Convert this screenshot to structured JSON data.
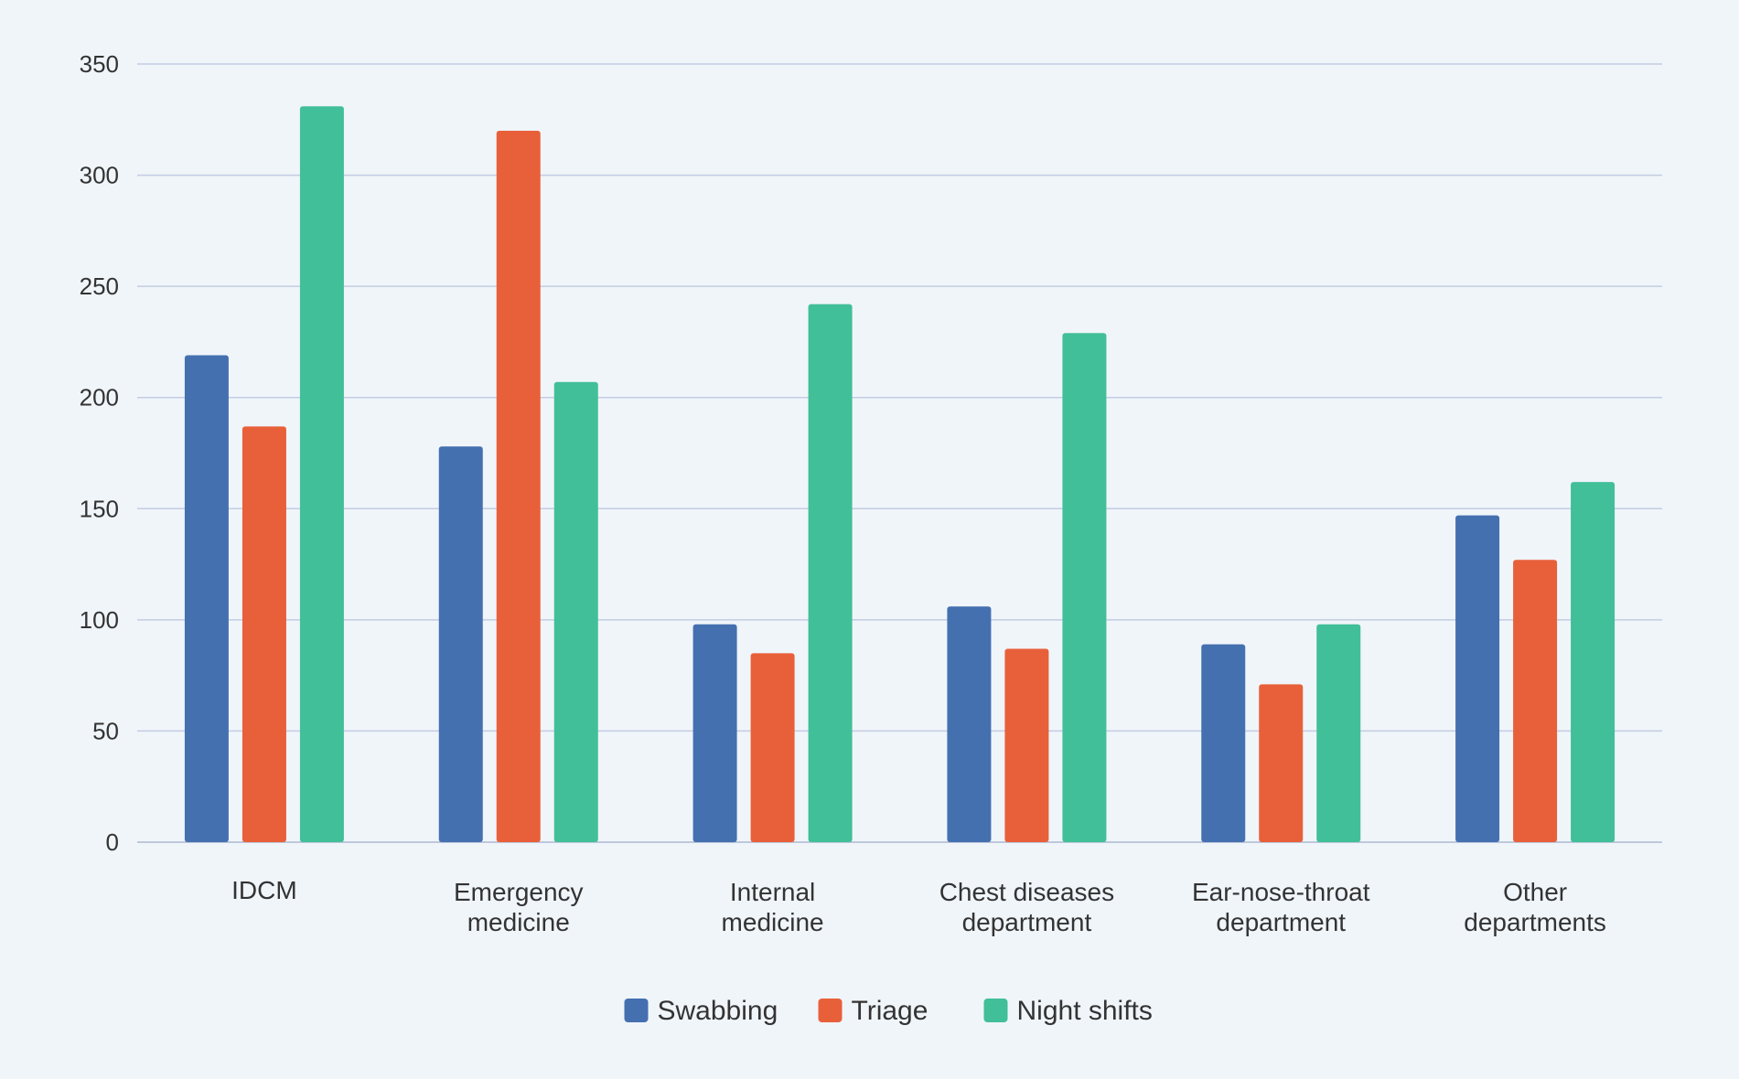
{
  "chart_data": {
    "type": "bar",
    "categories": [
      [
        "IDCM"
      ],
      [
        "Emergency",
        "medicine"
      ],
      [
        "Internal",
        "medicine"
      ],
      [
        "Chest diseases",
        "department"
      ],
      [
        "Ear-nose-throat",
        "department"
      ],
      [
        "Other",
        "departments"
      ]
    ],
    "series": [
      {
        "name": "Swabbing",
        "color": "#4470b0",
        "values": [
          219,
          178,
          98,
          106,
          89,
          147
        ]
      },
      {
        "name": "Triage",
        "color": "#e8603a",
        "values": [
          187,
          320,
          85,
          87,
          71,
          127
        ]
      },
      {
        "name": "Night shifts",
        "color": "#41bf98",
        "values": [
          331,
          207,
          242,
          229,
          98,
          162
        ]
      }
    ],
    "yticks": [
      0,
      50,
      100,
      150,
      200,
      250,
      300,
      350
    ],
    "ylim": [
      0,
      350
    ],
    "grid": true,
    "legend_position": "bottom-center",
    "title": "",
    "xlabel": "",
    "ylabel": ""
  }
}
